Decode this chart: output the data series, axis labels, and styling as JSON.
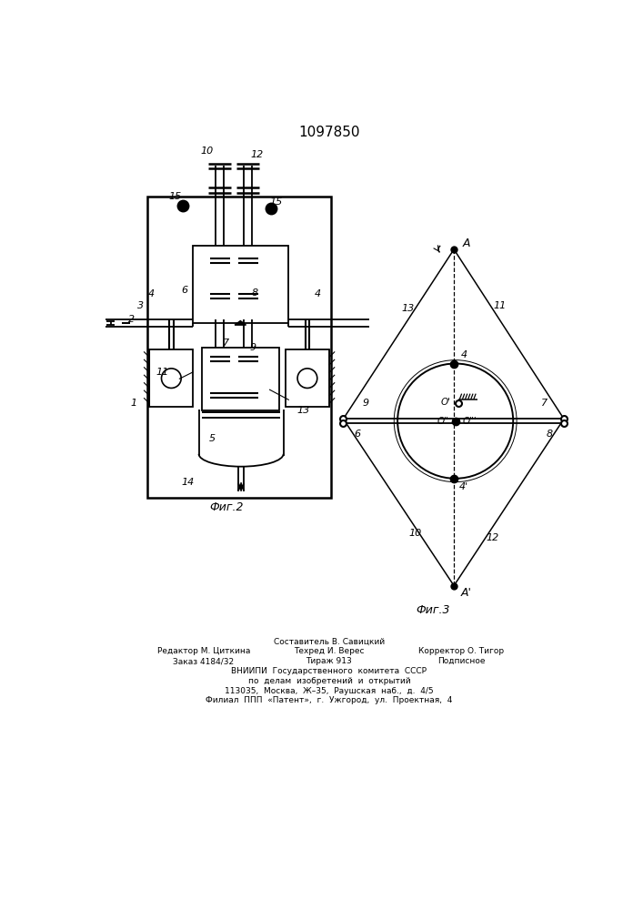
{
  "title": "1097850",
  "fig2_label": "Фиг.2",
  "fig3_label": "Фиг.3",
  "bg_color": "#ffffff",
  "line_color": "#000000",
  "footer_line0": "Составитель В. Савицкий",
  "footer_line1a": "Редактор М. Циткина",
  "footer_line1b": "Техред И. Верес",
  "footer_line1c": "Корректор О. Тигор",
  "footer_line2a": "Заказ 4184/32",
  "footer_line2b": "Тираж 913",
  "footer_line2c": "Подписное",
  "footer_line3": "ВНИИПИ  Государственного  комитета  СССР",
  "footer_line4": "по  делам  изобретений  и  открытий",
  "footer_line5": "113035,  Москва,  Ж–35,  Раушская  наб.,  д.  4/5",
  "footer_line6": "Филиал  ППП  «Патент»,  г.  Ужгород,  ул.  Проектная,  4"
}
